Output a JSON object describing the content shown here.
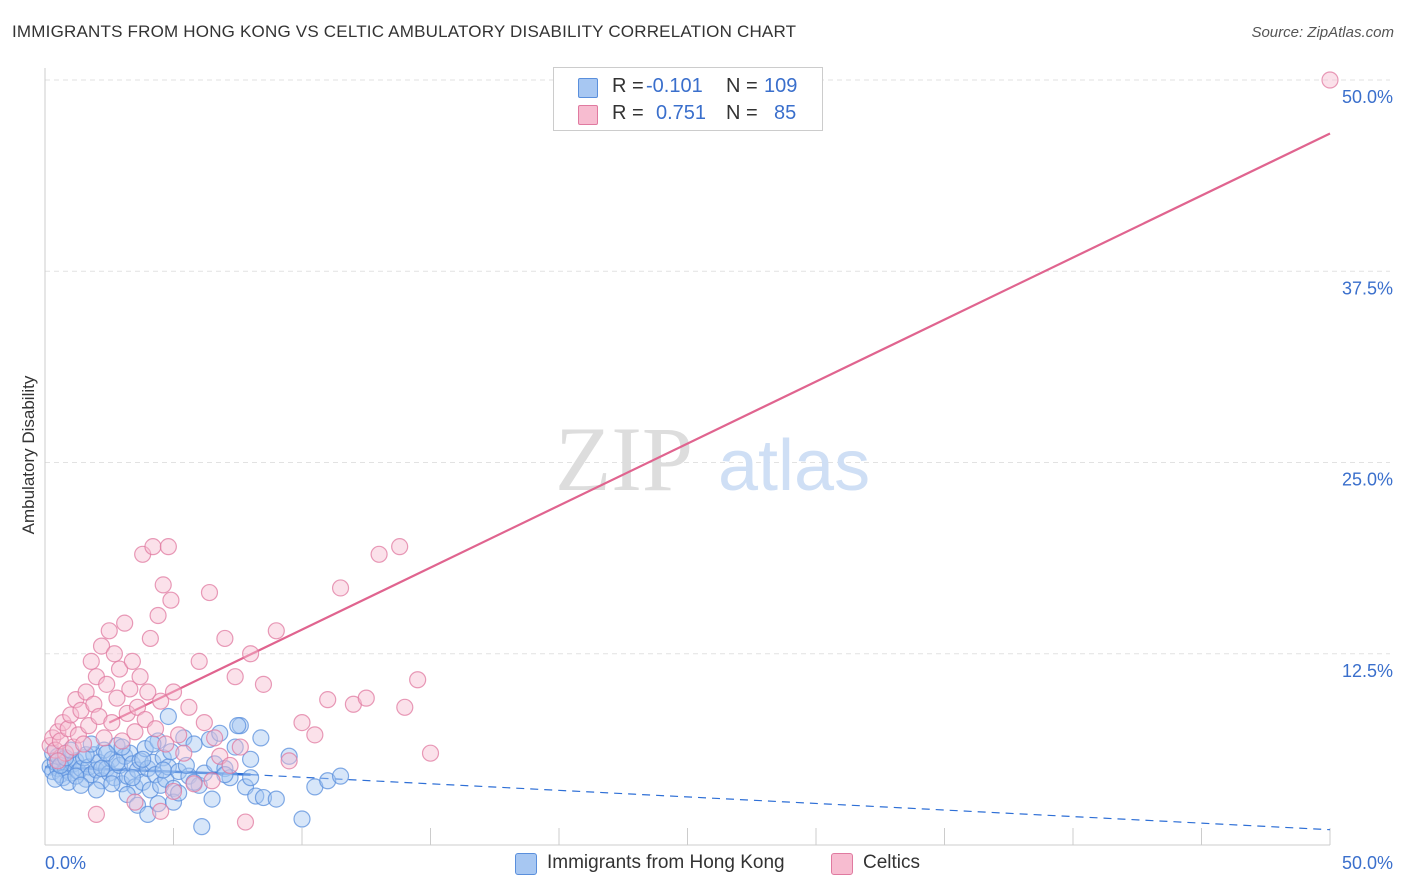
{
  "header": {
    "title": "IMMIGRANTS FROM HONG KONG VS CELTIC AMBULATORY DISABILITY CORRELATION CHART",
    "source": "Source: ZipAtlas.com"
  },
  "watermark": {
    "zip": "ZIP",
    "atlas": "atlas"
  },
  "legend_top": {
    "rows": [
      {
        "r_label": "R =",
        "r_value": "-0.101",
        "n_label": "N =",
        "n_value": "109",
        "color": "#a7c7f2",
        "border": "#5a8fdc"
      },
      {
        "r_label": "R =",
        "r_value": "0.751",
        "n_label": "N =",
        "n_value": "85",
        "color": "#f7bcd0",
        "border": "#e07aa0"
      }
    ]
  },
  "legend_bottom": [
    {
      "label": "Immigrants from Hong Kong",
      "color": "#a7c7f2",
      "border": "#5a8fdc"
    },
    {
      "label": "Celtics",
      "color": "#f7bcd0",
      "border": "#e07aa0"
    }
  ],
  "chart_data": {
    "type": "scatter",
    "title": "IMMIGRANTS FROM HONG KONG VS CELTIC AMBULATORY DISABILITY CORRELATION CHART",
    "xlabel": "",
    "ylabel": "Ambulatory Disability",
    "xlim": [
      0,
      50
    ],
    "ylim": [
      0,
      50
    ],
    "x_tick_labels": [
      {
        "value": 0,
        "label": "0.0%"
      },
      {
        "value": 50,
        "label": "50.0%"
      }
    ],
    "y_tick_labels": [
      {
        "value": 12.5,
        "label": "12.5%"
      },
      {
        "value": 25,
        "label": "25.0%"
      },
      {
        "value": 37.5,
        "label": "37.5%"
      },
      {
        "value": 50,
        "label": "50.0%"
      }
    ],
    "x_ticks_minor": [
      0,
      5,
      10,
      15,
      20,
      25,
      30,
      35,
      40,
      45,
      50
    ],
    "grid": true,
    "legend_position": "top-center",
    "series": [
      {
        "name": "Immigrants from Hong Kong",
        "color": "#5a8fdc",
        "fill": "#a7c7f2",
        "trend": {
          "x0": 0,
          "y0": 5.1,
          "x1": 8,
          "y1": 4.6,
          "dashed_to_x": 50,
          "dashed_y_end": 1.0
        },
        "points": [
          [
            0.2,
            5.1
          ],
          [
            0.3,
            4.8
          ],
          [
            0.4,
            5.4
          ],
          [
            0.5,
            5.0
          ],
          [
            0.6,
            4.6
          ],
          [
            0.7,
            5.6
          ],
          [
            0.8,
            4.9
          ],
          [
            0.9,
            5.2
          ],
          [
            1.0,
            4.7
          ],
          [
            1.1,
            5.3
          ],
          [
            0.3,
            6.0
          ],
          [
            0.5,
            5.8
          ],
          [
            0.7,
            4.4
          ],
          [
            0.9,
            4.1
          ],
          [
            1.2,
            5.5
          ],
          [
            1.3,
            4.8
          ],
          [
            1.4,
            5.0
          ],
          [
            1.5,
            5.7
          ],
          [
            1.6,
            4.3
          ],
          [
            1.7,
            5.1
          ],
          [
            1.8,
            4.6
          ],
          [
            1.9,
            5.9
          ],
          [
            2.0,
            4.9
          ],
          [
            2.1,
            5.4
          ],
          [
            2.2,
            4.2
          ],
          [
            2.3,
            6.2
          ],
          [
            2.4,
            5.0
          ],
          [
            2.5,
            4.7
          ],
          [
            2.6,
            5.6
          ],
          [
            2.7,
            4.4
          ],
          [
            2.8,
            6.5
          ],
          [
            2.9,
            5.2
          ],
          [
            3.0,
            4.0
          ],
          [
            3.1,
            5.8
          ],
          [
            3.2,
            4.5
          ],
          [
            3.3,
            6.0
          ],
          [
            3.4,
            5.3
          ],
          [
            3.5,
            3.8
          ],
          [
            3.6,
            4.9
          ],
          [
            3.7,
            5.5
          ],
          [
            3.8,
            4.1
          ],
          [
            3.9,
            6.3
          ],
          [
            4.0,
            5.0
          ],
          [
            4.1,
            3.6
          ],
          [
            4.2,
            5.4
          ],
          [
            4.3,
            4.6
          ],
          [
            4.4,
            6.8
          ],
          [
            4.5,
            3.9
          ],
          [
            4.6,
            5.7
          ],
          [
            4.7,
            4.3
          ],
          [
            4.8,
            5.1
          ],
          [
            4.9,
            6.1
          ],
          [
            5.0,
            3.7
          ],
          [
            5.2,
            4.8
          ],
          [
            5.4,
            7.0
          ],
          [
            5.6,
            4.5
          ],
          [
            5.8,
            6.6
          ],
          [
            6.0,
            3.9
          ],
          [
            6.2,
            4.7
          ],
          [
            6.4,
            6.9
          ],
          [
            6.6,
            5.3
          ],
          [
            6.8,
            7.3
          ],
          [
            7.0,
            5.0
          ],
          [
            7.2,
            4.4
          ],
          [
            7.4,
            6.4
          ],
          [
            7.6,
            7.8
          ],
          [
            7.8,
            3.8
          ],
          [
            8.0,
            5.6
          ],
          [
            8.2,
            3.2
          ],
          [
            8.4,
            7.0
          ],
          [
            0.4,
            4.3
          ],
          [
            0.6,
            5.2
          ],
          [
            0.8,
            5.7
          ],
          [
            1.0,
            6.2
          ],
          [
            1.2,
            4.5
          ],
          [
            1.4,
            3.9
          ],
          [
            1.6,
            5.9
          ],
          [
            1.8,
            6.6
          ],
          [
            2.0,
            3.6
          ],
          [
            2.2,
            5.0
          ],
          [
            2.4,
            6.0
          ],
          [
            2.6,
            4.0
          ],
          [
            2.8,
            5.4
          ],
          [
            3.0,
            6.4
          ],
          [
            3.2,
            3.3
          ],
          [
            3.4,
            4.4
          ],
          [
            3.6,
            2.6
          ],
          [
            3.8,
            5.6
          ],
          [
            4.0,
            2.0
          ],
          [
            4.2,
            6.6
          ],
          [
            4.4,
            2.7
          ],
          [
            4.6,
            4.9
          ],
          [
            4.8,
            8.4
          ],
          [
            5.0,
            2.8
          ],
          [
            5.2,
            3.4
          ],
          [
            5.5,
            5.2
          ],
          [
            5.8,
            4.1
          ],
          [
            6.1,
            1.2
          ],
          [
            6.5,
            3.0
          ],
          [
            7.0,
            4.6
          ],
          [
            7.5,
            7.8
          ],
          [
            8.0,
            4.4
          ],
          [
            8.5,
            3.1
          ],
          [
            9.0,
            3.0
          ],
          [
            9.5,
            5.8
          ],
          [
            10.0,
            1.7
          ],
          [
            10.5,
            3.8
          ],
          [
            11.0,
            4.2
          ],
          [
            11.5,
            4.5
          ]
        ]
      },
      {
        "name": "Celtics",
        "color": "#e07aa0",
        "fill": "#f7bcd0",
        "trend": {
          "x0": 2.5,
          "y0": 8.0,
          "x1": 50,
          "y1": 46.5
        },
        "points": [
          [
            0.2,
            6.5
          ],
          [
            0.3,
            7.0
          ],
          [
            0.4,
            6.2
          ],
          [
            0.5,
            7.4
          ],
          [
            0.6,
            6.8
          ],
          [
            0.7,
            8.0
          ],
          [
            0.8,
            6.0
          ],
          [
            0.9,
            7.6
          ],
          [
            1.0,
            8.5
          ],
          [
            1.1,
            6.4
          ],
          [
            1.2,
            9.5
          ],
          [
            1.3,
            7.2
          ],
          [
            1.4,
            8.8
          ],
          [
            1.5,
            6.6
          ],
          [
            1.6,
            10.0
          ],
          [
            1.7,
            7.8
          ],
          [
            1.8,
            12.0
          ],
          [
            1.9,
            9.2
          ],
          [
            2.0,
            11.0
          ],
          [
            2.1,
            8.4
          ],
          [
            2.2,
            13.0
          ],
          [
            2.3,
            7.0
          ],
          [
            2.4,
            10.5
          ],
          [
            2.5,
            14.0
          ],
          [
            2.6,
            8.0
          ],
          [
            2.7,
            12.5
          ],
          [
            2.8,
            9.6
          ],
          [
            2.9,
            11.5
          ],
          [
            3.0,
            6.8
          ],
          [
            3.1,
            14.5
          ],
          [
            3.2,
            8.6
          ],
          [
            3.3,
            10.2
          ],
          [
            3.4,
            12.0
          ],
          [
            3.5,
            7.4
          ],
          [
            3.6,
            9.0
          ],
          [
            3.7,
            11.0
          ],
          [
            3.8,
            19.0
          ],
          [
            3.9,
            8.2
          ],
          [
            4.0,
            10.0
          ],
          [
            4.1,
            13.5
          ],
          [
            4.2,
            19.5
          ],
          [
            4.3,
            7.6
          ],
          [
            4.4,
            15.0
          ],
          [
            4.5,
            9.4
          ],
          [
            4.6,
            17.0
          ],
          [
            4.7,
            6.6
          ],
          [
            4.8,
            19.5
          ],
          [
            4.9,
            16.0
          ],
          [
            5.0,
            10.0
          ],
          [
            5.2,
            7.2
          ],
          [
            5.4,
            6.0
          ],
          [
            5.6,
            9.0
          ],
          [
            5.8,
            4.0
          ],
          [
            6.0,
            12.0
          ],
          [
            6.2,
            8.0
          ],
          [
            6.4,
            16.5
          ],
          [
            6.6,
            7.0
          ],
          [
            6.8,
            5.8
          ],
          [
            7.0,
            13.5
          ],
          [
            7.2,
            5.2
          ],
          [
            7.4,
            11.0
          ],
          [
            7.6,
            6.4
          ],
          [
            7.8,
            1.5
          ],
          [
            8.0,
            12.5
          ],
          [
            8.5,
            10.5
          ],
          [
            9.0,
            14.0
          ],
          [
            9.5,
            5.5
          ],
          [
            10.0,
            8.0
          ],
          [
            10.5,
            7.2
          ],
          [
            11.0,
            9.5
          ],
          [
            11.5,
            16.8
          ],
          [
            12.0,
            9.2
          ],
          [
            12.5,
            9.6
          ],
          [
            13.0,
            19.0
          ],
          [
            13.8,
            19.5
          ],
          [
            14.0,
            9.0
          ],
          [
            14.5,
            10.8
          ],
          [
            15.0,
            6.0
          ],
          [
            3.5,
            2.8
          ],
          [
            4.5,
            2.2
          ],
          [
            2.0,
            2.0
          ],
          [
            5.0,
            3.5
          ],
          [
            6.5,
            4.2
          ],
          [
            0.5,
            5.5
          ],
          [
            50.0,
            50.0
          ]
        ]
      }
    ]
  }
}
